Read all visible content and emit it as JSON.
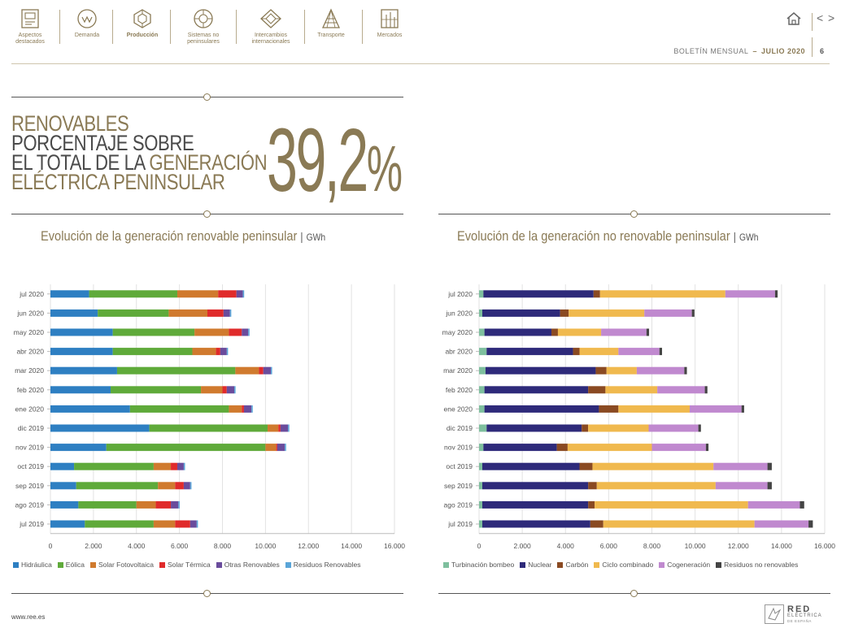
{
  "nav": {
    "items": [
      {
        "label": "Aspectos\ndestacados",
        "icon": "highlights-icon"
      },
      {
        "label": "Demanda",
        "icon": "demand-icon"
      },
      {
        "label": "Producción",
        "icon": "production-icon"
      },
      {
        "label": "Sistemas no\npeninsulares",
        "icon": "islands-icon"
      },
      {
        "label": "Intercambios\ninternacionales",
        "icon": "exchanges-icon"
      },
      {
        "label": "Transporte",
        "icon": "transmission-tower-icon"
      },
      {
        "label": "Mercados",
        "icon": "markets-icon"
      }
    ],
    "active_index": 2,
    "prev_arrow": "<",
    "next_arrow": ">",
    "bulletin_label": "BOLETÍN MENSUAL",
    "bulletin_dash": "–",
    "bulletin_month": "JULIO 2020",
    "page_number": "6"
  },
  "headline": {
    "line1": "RENOVABLES",
    "line2": "PORCENTAJE SOBRE",
    "line3a": "EL TOTAL DE LA ",
    "line3b": "GENERACIÓN",
    "line4": "ELÉCTRICA PENINSULAR",
    "value": "39,2",
    "symbol": "%"
  },
  "titles": {
    "left_main": "Evolución de la generación renovable peninsular",
    "left_unit": "GWh",
    "right_main": "Evolución de la generación no renovable peninsular",
    "right_unit": "GWh",
    "sep": "|"
  },
  "colors": {
    "accent": "#8a7a55",
    "grid": "#e4e4e4"
  },
  "footer": {
    "url": "www.ree.es",
    "logo_main": "RED",
    "logo_sub": "ELÉCTRICA",
    "logo_sub2": "DE ESPAÑA"
  },
  "chart_data": [
    {
      "type": "bar",
      "orientation": "horizontal",
      "stacked": true,
      "unit": "GWh",
      "categories": [
        "jul 2020",
        "jun 2020",
        "may 2020",
        "abr 2020",
        "mar 2020",
        "feb 2020",
        "ene 2020",
        "dic 2019",
        "nov 2019",
        "oct 2019",
        "sep 2019",
        "ago 2019",
        "jul 2019"
      ],
      "xlim": [
        0,
        16000
      ],
      "xticks": [
        "0",
        "2.000",
        "4.000",
        "6.000",
        "8.000",
        "10.000",
        "12.000",
        "14.000",
        "16.000"
      ],
      "grid": true,
      "legend_position": "bottom",
      "series": [
        {
          "name": "Hidráulica",
          "color": "#2e7fc2",
          "values": [
            1800,
            2200,
            2900,
            2900,
            3100,
            2800,
            3700,
            4600,
            2600,
            1100,
            1200,
            1300,
            1600
          ]
        },
        {
          "name": "Eólica",
          "color": "#5faa3a",
          "values": [
            4100,
            3300,
            3800,
            3700,
            5500,
            4200,
            4600,
            5500,
            7400,
            3700,
            3800,
            2700,
            3200
          ]
        },
        {
          "name": "Solar Fotovoltaica",
          "color": "#d07a2e",
          "values": [
            1900,
            1800,
            1600,
            1100,
            1100,
            1000,
            600,
            500,
            500,
            800,
            800,
            900,
            1000
          ]
        },
        {
          "name": "Solar Térmica",
          "color": "#e02b2b",
          "values": [
            850,
            750,
            600,
            200,
            200,
            200,
            100,
            100,
            50,
            300,
            400,
            700,
            700
          ]
        },
        {
          "name": "Otras Renovables",
          "color": "#6a4c9c",
          "values": [
            300,
            300,
            300,
            300,
            350,
            350,
            350,
            350,
            350,
            300,
            300,
            350,
            300
          ]
        },
        {
          "name": "Residuos Renovables",
          "color": "#5aa5d8",
          "values": [
            60,
            60,
            60,
            60,
            60,
            60,
            60,
            60,
            60,
            60,
            60,
            60,
            60
          ]
        }
      ]
    },
    {
      "type": "bar",
      "orientation": "horizontal",
      "stacked": true,
      "unit": "GWh",
      "categories": [
        "jul 2020",
        "jun 2020",
        "may 2020",
        "abr 2020",
        "mar 2020",
        "feb 2020",
        "ene 2020",
        "dic 2019",
        "nov 2019",
        "oct 2019",
        "sep 2019",
        "ago 2019",
        "jul 2019"
      ],
      "xlim": [
        0,
        16000
      ],
      "xticks": [
        "0",
        "2.000",
        "4.000",
        "6.000",
        "8.000",
        "10.000",
        "12.000",
        "14.000",
        "16.000"
      ],
      "grid": true,
      "legend_position": "bottom",
      "series": [
        {
          "name": "Turbinación bombeo",
          "color": "#7ebf9e",
          "values": [
            200,
            150,
            250,
            350,
            300,
            250,
            250,
            350,
            200,
            150,
            150,
            150,
            150
          ]
        },
        {
          "name": "Nuclear",
          "color": "#2e2a7a",
          "values": [
            5100,
            3600,
            3100,
            4000,
            5100,
            4800,
            5300,
            4400,
            3400,
            4500,
            4900,
            4900,
            5000
          ]
        },
        {
          "name": "Carbón",
          "color": "#8a4a22",
          "values": [
            300,
            400,
            300,
            300,
            500,
            800,
            900,
            300,
            500,
            600,
            400,
            300,
            600
          ]
        },
        {
          "name": "Ciclo combinado",
          "color": "#f0b94e",
          "values": [
            5800,
            3500,
            2000,
            1800,
            1400,
            2400,
            3300,
            2800,
            3900,
            5600,
            5500,
            7100,
            7000
          ]
        },
        {
          "name": "Cogeneración",
          "color": "#c089cf",
          "values": [
            2300,
            2200,
            2100,
            1900,
            2200,
            2200,
            2400,
            2300,
            2500,
            2500,
            2400,
            2400,
            2500
          ]
        },
        {
          "name": "Residuos no renovables",
          "color": "#444444",
          "values": [
            120,
            120,
            120,
            120,
            120,
            120,
            120,
            120,
            120,
            200,
            200,
            200,
            200
          ]
        }
      ]
    }
  ]
}
